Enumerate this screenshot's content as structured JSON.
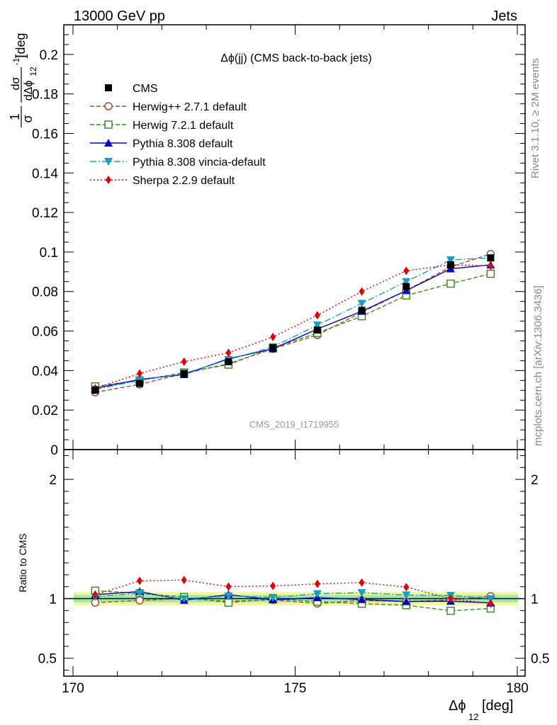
{
  "header": {
    "left": "13000 GeV pp",
    "right": "Jets"
  },
  "side_text": {
    "rivet": "Rivet 3.1.10, ≥ 2M events",
    "mcplots": "mcplots.cern.ch [arXiv:1306.3436]"
  },
  "watermark": "CMS_2019_I1719955",
  "chart_data": {
    "type": "line",
    "title": "Δϕ(jj) (CMS back-to-back jets)",
    "xlabel": "Δϕ",
    "xlabel_sub": "12",
    "xlabel_unit": " [deg]",
    "ylabel_main_prefix": "[deg",
    "ylabel_main_sup": "-1",
    "ylabel_main_suffix": "]",
    "ylabel_frac_num": "1",
    "ylabel_frac_den": "σ",
    "ylabel_frac2_num": "dσ",
    "ylabel_frac2_den": "dΔϕ",
    "ylabel_frac2_den_sub": "12",
    "ylabel_ratio": "Ratio to CMS",
    "xlim": [
      170,
      180
    ],
    "ylim_main": [
      0,
      0.215
    ],
    "ylim_ratio": [
      0.35,
      2.25
    ],
    "x_ticks": [
      "170",
      "175",
      "180"
    ],
    "y_ticks_main": [
      "0",
      "0.02",
      "0.04",
      "0.06",
      "0.08",
      "0.1",
      "0.12",
      "0.14",
      "0.16",
      "0.18",
      "0.2"
    ],
    "y_ticks_ratio": [
      "0.5",
      "1",
      "2"
    ],
    "x": [
      170.5,
      171.5,
      172.5,
      173.5,
      174.5,
      175.5,
      176.5,
      177.5,
      178.5,
      179.4
    ],
    "data": {
      "name": "CMS",
      "values": [
        0.03,
        0.0335,
        0.0385,
        0.0445,
        0.0515,
        0.0605,
        0.0705,
        0.0825,
        0.0935,
        0.097
      ]
    },
    "band": {
      "inner": [
        0.03,
        0.03,
        0.03,
        0.03,
        0.03,
        0.03,
        0.03,
        0.03,
        0.03,
        0.03
      ],
      "outer": [
        0.055,
        0.055,
        0.055,
        0.055,
        0.055,
        0.055,
        0.055,
        0.055,
        0.055,
        0.055
      ]
    },
    "series": [
      {
        "name": "Herwig++ 2.7.1 default",
        "color": "#a0522d",
        "dash": "6,3",
        "marker": "circle-open",
        "values": [
          0.029,
          0.033,
          0.0385,
          0.0435,
          0.051,
          0.058,
          0.0695,
          0.0805,
          0.0925,
          0.099
        ]
      },
      {
        "name": "Herwig 7.2.1 default",
        "color": "#3c8c1e",
        "dash": "6,3",
        "marker": "square-open",
        "values": [
          0.032,
          0.035,
          0.039,
          0.043,
          0.0515,
          0.059,
          0.0675,
          0.078,
          0.084,
          0.089
        ]
      },
      {
        "name": "Pythia 8.308 default",
        "color": "#0000cc",
        "dash": "",
        "marker": "triangle-up",
        "values": [
          0.031,
          0.0355,
          0.038,
          0.046,
          0.051,
          0.061,
          0.07,
          0.0805,
          0.0915,
          0.0935
        ]
      },
      {
        "name": "Pythia 8.308 vincia-default",
        "color": "#1a9fc0",
        "dash": "9,3,2,3",
        "marker": "triangle-down",
        "values": [
          0.0305,
          0.035,
          0.0385,
          0.0455,
          0.052,
          0.063,
          0.074,
          0.085,
          0.096,
          0.097
        ]
      },
      {
        "name": "Sherpa 2.2.9 default",
        "color": "#e00000",
        "dash": "2,3",
        "marker": "diamond",
        "values": [
          0.031,
          0.0385,
          0.0445,
          0.049,
          0.057,
          0.068,
          0.08,
          0.0905,
          0.0935,
          0.093
        ]
      }
    ]
  }
}
